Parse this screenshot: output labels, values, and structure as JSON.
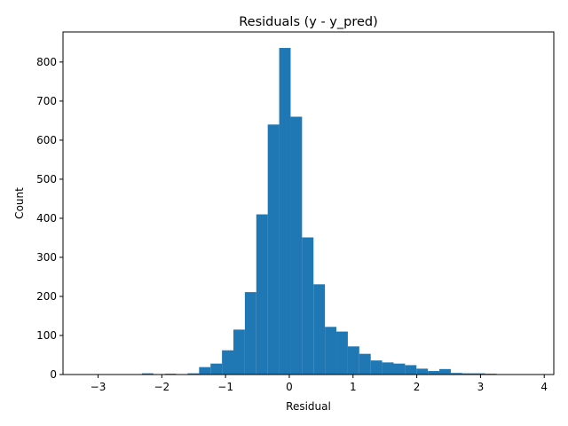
{
  "chart_data": {
    "type": "bar",
    "title": "Residuals (y - y_pred)",
    "xlabel": "Residual",
    "ylabel": "Count",
    "xlim": [
      -3.55,
      4.15
    ],
    "ylim": [
      0,
      877
    ],
    "xticks": [
      -3,
      -2,
      -1,
      0,
      1,
      2,
      3,
      4
    ],
    "xtick_labels": [
      "−3",
      "−2",
      "−1",
      "0",
      "1",
      "2",
      "3",
      "4"
    ],
    "yticks": [
      0,
      100,
      200,
      300,
      400,
      500,
      600,
      700,
      800
    ],
    "ytick_labels": [
      "0",
      "100",
      "200",
      "300",
      "400",
      "500",
      "600",
      "700",
      "800"
    ],
    "bin_width": 0.1795,
    "bin_start": -3.21,
    "values": [
      1,
      0,
      1,
      1,
      0,
      3,
      1,
      2,
      1,
      3,
      19,
      28,
      62,
      115,
      211,
      410,
      640,
      836,
      660,
      351,
      231,
      122,
      110,
      72,
      53,
      36,
      31,
      28,
      24,
      15,
      9,
      14,
      4,
      3,
      3,
      2,
      1,
      0,
      0,
      1,
      1
    ],
    "bar_color": "#1f77b4",
    "grid": false,
    "legend": "none"
  }
}
